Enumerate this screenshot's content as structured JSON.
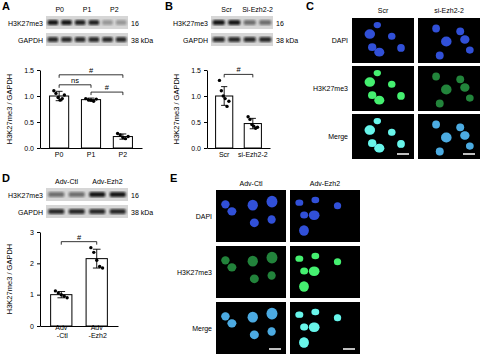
{
  "chart_data": [
    {
      "type": "bar",
      "categories": [
        "P0",
        "P1",
        "P2"
      ],
      "values": [
        1.0,
        0.93,
        0.22
      ],
      "errors": [
        0.09,
        0.03,
        0.05
      ],
      "points": [
        [
          1.1,
          1.05,
          0.97,
          0.92,
          0.95,
          1.02
        ],
        [
          0.95,
          0.93,
          0.92,
          0.9,
          0.94
        ],
        [
          0.28,
          0.25,
          0.2,
          0.18,
          0.22
        ]
      ],
      "color": "#ffffff",
      "ylabel": "H3K27me3 / GAPDH",
      "ylim": [
        0,
        1.5
      ],
      "yticks": [
        {
          "value": 0,
          "label": "0.0"
        },
        {
          "value": 0.5,
          "label": "0.5"
        },
        {
          "value": 1,
          "label": "1.0"
        },
        {
          "value": 1.5,
          "label": "1.5"
        }
      ],
      "annotations": [
        {
          "text": "ns",
          "between": [
            "P0",
            "P1"
          ]
        },
        {
          "text": "#",
          "between": [
            "P1",
            "P2"
          ]
        },
        {
          "text": "#",
          "between": [
            "P0",
            "P2"
          ]
        }
      ]
    },
    {
      "type": "bar",
      "categories": [
        "Scr",
        "si-Ezh2-2"
      ],
      "values": [
        1.0,
        0.47
      ],
      "errors": [
        0.18,
        0.1
      ],
      "points": [
        [
          1.3,
          1.1,
          1.0,
          0.95,
          0.8,
          0.9
        ],
        [
          0.6,
          0.55,
          0.45,
          0.42,
          0.38,
          0.4
        ]
      ],
      "color": "#ffffff",
      "ylabel": "H3K27me3 / GAPDH",
      "ylim": [
        0,
        1.5
      ],
      "yticks": [
        {
          "value": 0,
          "label": "0.0"
        },
        {
          "value": 0.5,
          "label": "0.5"
        },
        {
          "value": 1,
          "label": "1.0"
        },
        {
          "value": 1.5,
          "label": "1.5"
        }
      ],
      "annotations": [
        {
          "text": "#",
          "between": [
            "Scr",
            "si-Ezh2-2"
          ]
        }
      ]
    },
    {
      "type": "bar",
      "categories": [
        "Adv -Ctl",
        "Adv -Ezh2"
      ],
      "values": [
        1.0,
        2.15
      ],
      "errors": [
        0.1,
        0.3
      ],
      "points": [
        [
          1.12,
          1.05,
          1.0,
          0.95,
          0.9
        ],
        [
          2.5,
          2.35,
          2.1,
          1.9,
          1.85
        ]
      ],
      "color": "#ffffff",
      "ylabel": "H3K27me3 / GAPDH",
      "ylim": [
        0,
        3
      ],
      "yticks": [
        0,
        1,
        2,
        3
      ],
      "annotations": [
        {
          "text": "#",
          "between": [
            "Adv -Ctl",
            "Adv -Ezh2"
          ]
        }
      ]
    }
  ],
  "panels": [
    {
      "label": "A",
      "blot": {
        "columns": [
          "P0",
          "P1",
          "P2"
        ],
        "rows": [
          {
            "label": "H3K27me3",
            "mw": "16"
          },
          {
            "label": "GAPDH",
            "mw": "38 kDa"
          }
        ]
      }
    },
    {
      "label": "B",
      "blot": {
        "columns": [
          "Scr",
          "Si-Ezh2-2"
        ],
        "rows": [
          {
            "label": "H3K27me3",
            "mw": "16"
          },
          {
            "label": "GAPDH",
            "mw": "38 kDa"
          }
        ]
      }
    },
    {
      "label": "C",
      "images": {
        "columns": [
          "Scr",
          "si-Ezh2-2"
        ],
        "rows": [
          "DAPI",
          "H3K27me3",
          "Merge"
        ]
      }
    },
    {
      "label": "D",
      "blot": {
        "columns": [
          "Adv-Ctl",
          "Adv-Ezh2"
        ],
        "rows": [
          {
            "label": "H3K27me3",
            "mw": "16"
          },
          {
            "label": "GAPDH",
            "mw": "38 kDa"
          }
        ]
      }
    },
    {
      "label": "E",
      "images": {
        "columns": [
          "Adv-Ctl",
          "Adv-Ezh2"
        ],
        "rows": [
          "DAPI",
          "H3K27me3",
          "Merge"
        ]
      }
    }
  ]
}
